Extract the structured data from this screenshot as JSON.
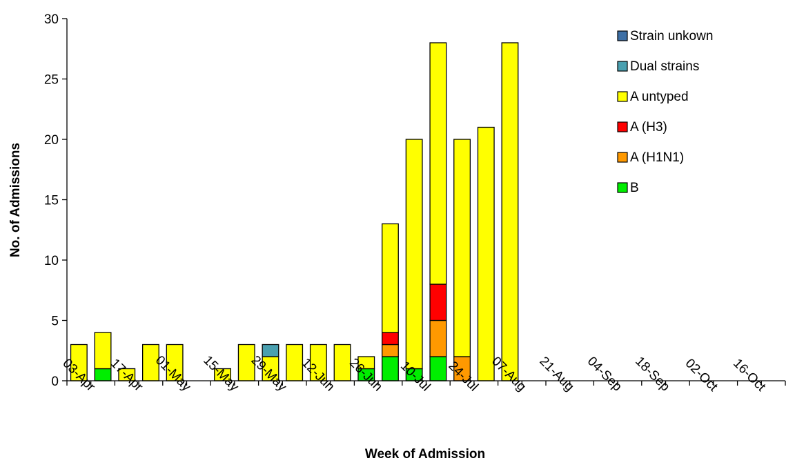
{
  "chart_data": {
    "type": "bar",
    "stacked": true,
    "xlabel": "Week of Admission",
    "ylabel": "No. of Admissions",
    "ylim": [
      0,
      30
    ],
    "yticks": [
      0,
      5,
      10,
      15,
      20,
      25,
      30
    ],
    "grid": false,
    "legend_position": "top-right",
    "x_tick_labels": [
      "03-Apr",
      "17-Apr",
      "01-May",
      "15-May",
      "29-May",
      "12-Jun",
      "26-Jun",
      "10-Jul",
      "24-Jul",
      "07-Aug",
      "21-Aug",
      "04-Sep",
      "18-Sep",
      "02-Oct",
      "16-Oct"
    ],
    "weeks": 30,
    "tick_every": 2,
    "series": [
      {
        "name": "B",
        "color": "#00ee00",
        "values": [
          0,
          1,
          0,
          0,
          0,
          0,
          0,
          0,
          0,
          0,
          0,
          0,
          1,
          2,
          1,
          2,
          0,
          0,
          0,
          0,
          0,
          0,
          0,
          0,
          0,
          0,
          0,
          0,
          0,
          0
        ]
      },
      {
        "name": "A (H1N1)",
        "color": "#ff9900",
        "values": [
          0,
          0,
          0,
          0,
          0,
          0,
          0,
          0,
          0,
          0,
          0,
          0,
          0,
          1,
          0,
          3,
          2,
          0,
          0,
          0,
          0,
          0,
          0,
          0,
          0,
          0,
          0,
          0,
          0,
          0
        ]
      },
      {
        "name": "A (H3)",
        "color": "#ff0000",
        "values": [
          0,
          0,
          0,
          0,
          0,
          0,
          0,
          0,
          0,
          0,
          0,
          0,
          0,
          1,
          0,
          3,
          0,
          0,
          0,
          0,
          0,
          0,
          0,
          0,
          0,
          0,
          0,
          0,
          0,
          0
        ]
      },
      {
        "name": "A untyped",
        "color": "#ffff00",
        "values": [
          3,
          3,
          1,
          3,
          3,
          0,
          1,
          3,
          2,
          3,
          3,
          3,
          1,
          9,
          19,
          20,
          18,
          21,
          28,
          0,
          0,
          0,
          0,
          0,
          0,
          0,
          0,
          0,
          0,
          0
        ]
      },
      {
        "name": "Dual strains",
        "color": "#4aa0b0",
        "values": [
          0,
          0,
          0,
          0,
          0,
          0,
          0,
          0,
          1,
          0,
          0,
          0,
          0,
          0,
          0,
          0,
          0,
          0,
          0,
          0,
          0,
          0,
          0,
          0,
          0,
          0,
          0,
          0,
          0,
          0
        ]
      },
      {
        "name": "Strain unkown",
        "color": "#3d6fa5",
        "values": [
          0,
          0,
          0,
          0,
          0,
          0,
          0,
          0,
          0,
          0,
          0,
          0,
          0,
          0,
          0,
          0,
          0,
          0,
          0,
          0,
          0,
          0,
          0,
          0,
          0,
          0,
          0,
          0,
          0,
          0
        ]
      }
    ],
    "legend_order": [
      "Strain unkown",
      "Dual strains",
      "A untyped",
      "A (H3)",
      "A (H1N1)",
      "B"
    ]
  }
}
